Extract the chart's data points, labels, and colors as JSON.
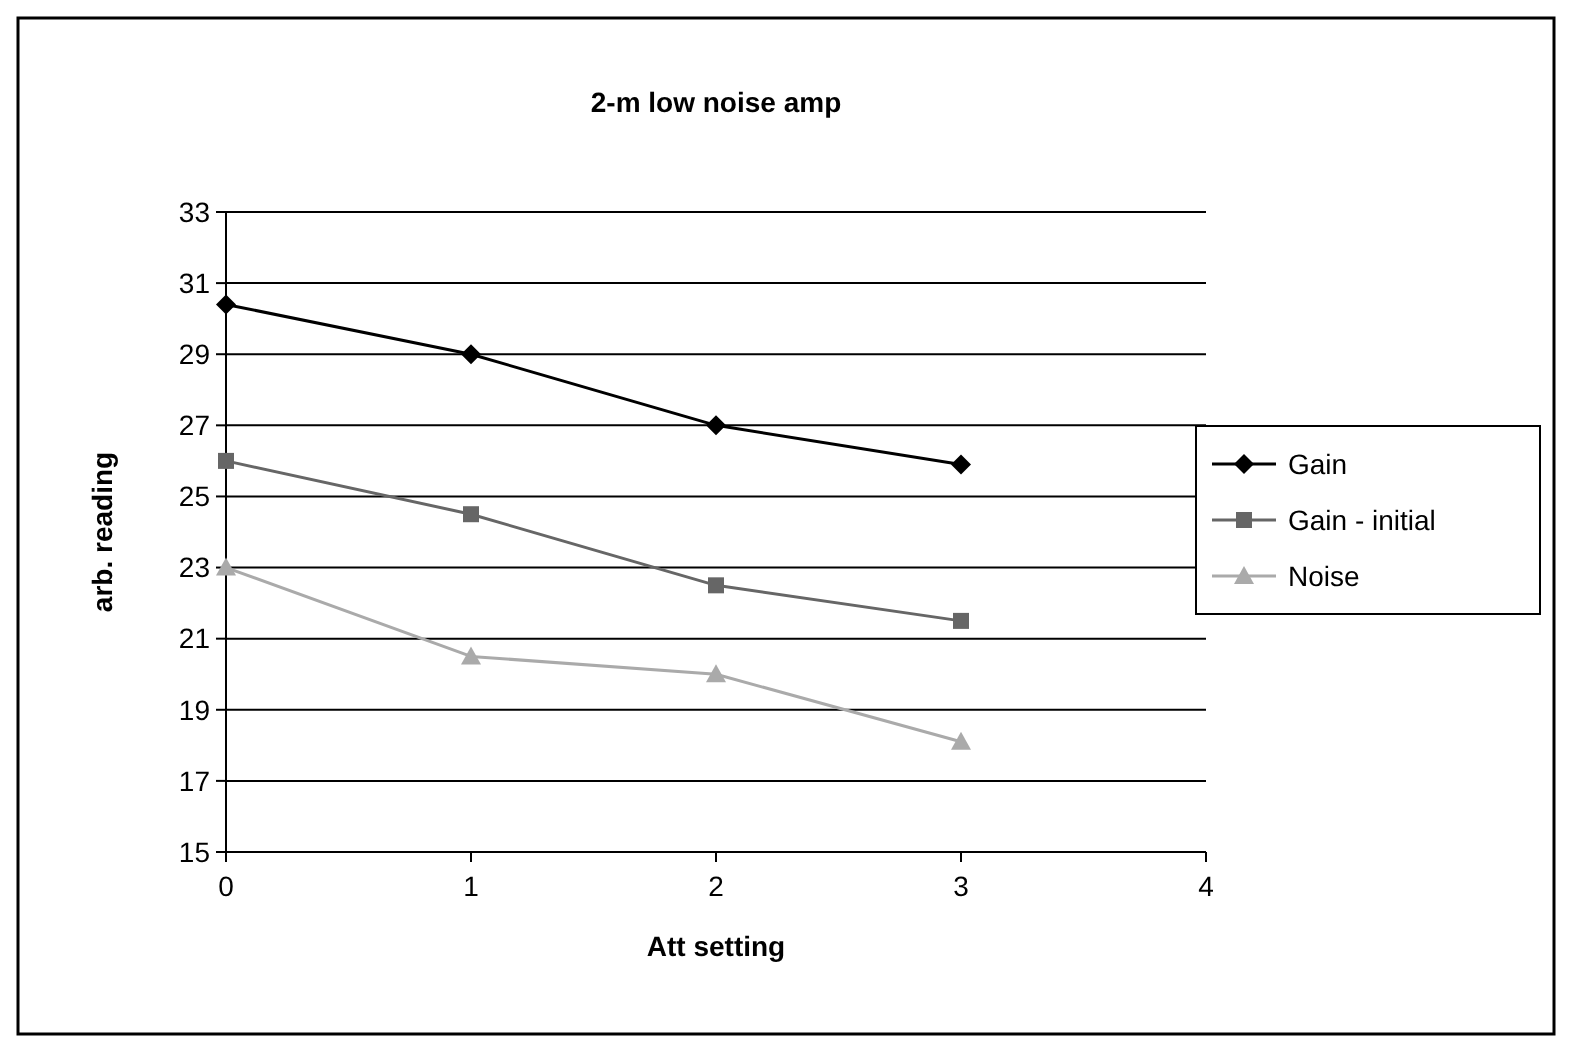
{
  "chart_data": {
    "type": "line",
    "title": "2-m low noise amp",
    "xlabel": "Att setting",
    "ylabel": "arb. reading",
    "x": [
      0,
      1,
      2,
      3
    ],
    "xlim": [
      0,
      4
    ],
    "xticks": [
      0,
      1,
      2,
      3,
      4
    ],
    "ylim": [
      15,
      33
    ],
    "yticks": [
      15,
      17,
      19,
      21,
      23,
      25,
      27,
      29,
      31,
      33
    ],
    "grid": "y",
    "legend": "right",
    "line_style": "solid",
    "series": [
      {
        "name": "Gain",
        "color": "#000000",
        "marker": "diamond",
        "values": [
          30.4,
          29,
          27,
          25.9
        ]
      },
      {
        "name": "Gain - initial",
        "color": "#666666",
        "marker": "square",
        "values": [
          26,
          24.5,
          22.5,
          21.5
        ]
      },
      {
        "name": "Noise",
        "color": "#aaaaaa",
        "marker": "triangle",
        "values": [
          23,
          20.5,
          20,
          18.1
        ]
      }
    ]
  }
}
